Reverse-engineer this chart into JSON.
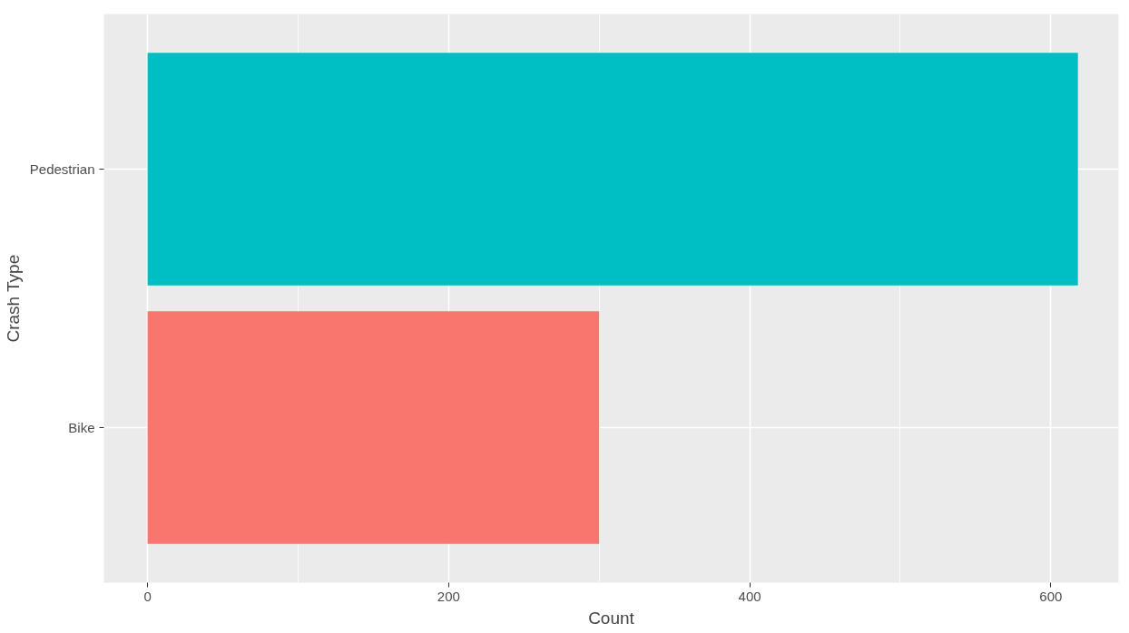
{
  "chart_data": {
    "type": "bar",
    "orientation": "horizontal",
    "xlabel": "Count",
    "ylabel": "Crash Type",
    "categories": [
      "Pedestrian",
      "Bike"
    ],
    "values": [
      618,
      300
    ],
    "colors": [
      "#00bfc4",
      "#f8766d"
    ],
    "xlim": [
      -29,
      645
    ],
    "xticks": [
      0,
      200,
      400,
      600
    ],
    "grid": true
  }
}
